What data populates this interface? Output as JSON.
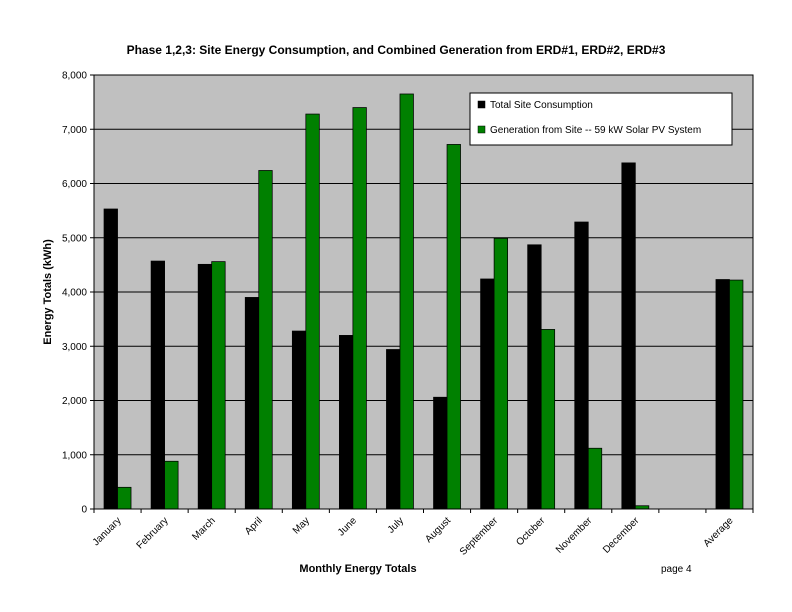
{
  "page_footer": "page 4",
  "chart_data": {
    "type": "bar",
    "title": "Phase 1,2,3:  Site Energy Consumption, and Combined Generation from ERD#1,  ERD#2, ERD#3",
    "xlabel": "Monthly Energy Totals",
    "ylabel": "Energy Totals (kWh)",
    "ylim": [
      0,
      8000
    ],
    "yticks": [
      "0",
      "1,000",
      "2,000",
      "3,000",
      "4,000",
      "5,000",
      "6,000",
      "7,000",
      "8,000"
    ],
    "categories": [
      "January",
      "February",
      "March",
      "April",
      "May",
      "June",
      "July",
      "August",
      "September",
      "October",
      "November",
      "December",
      "",
      "Average"
    ],
    "series": [
      {
        "name": "Total Site Consumption",
        "color": "#000000",
        "values": [
          5530,
          4570,
          4510,
          3900,
          3280,
          3200,
          2940,
          2060,
          4240,
          4870,
          5290,
          6380,
          null,
          4230
        ]
      },
      {
        "name": "Generation from Site -- 59 kW Solar PV System",
        "color": "#008000",
        "values": [
          400,
          880,
          4560,
          6240,
          7280,
          7400,
          7650,
          6720,
          4990,
          3310,
          1120,
          60,
          null,
          4220
        ]
      }
    ],
    "grid": true,
    "legend_position": "top-right",
    "plot_background": "#c0c0c0"
  }
}
